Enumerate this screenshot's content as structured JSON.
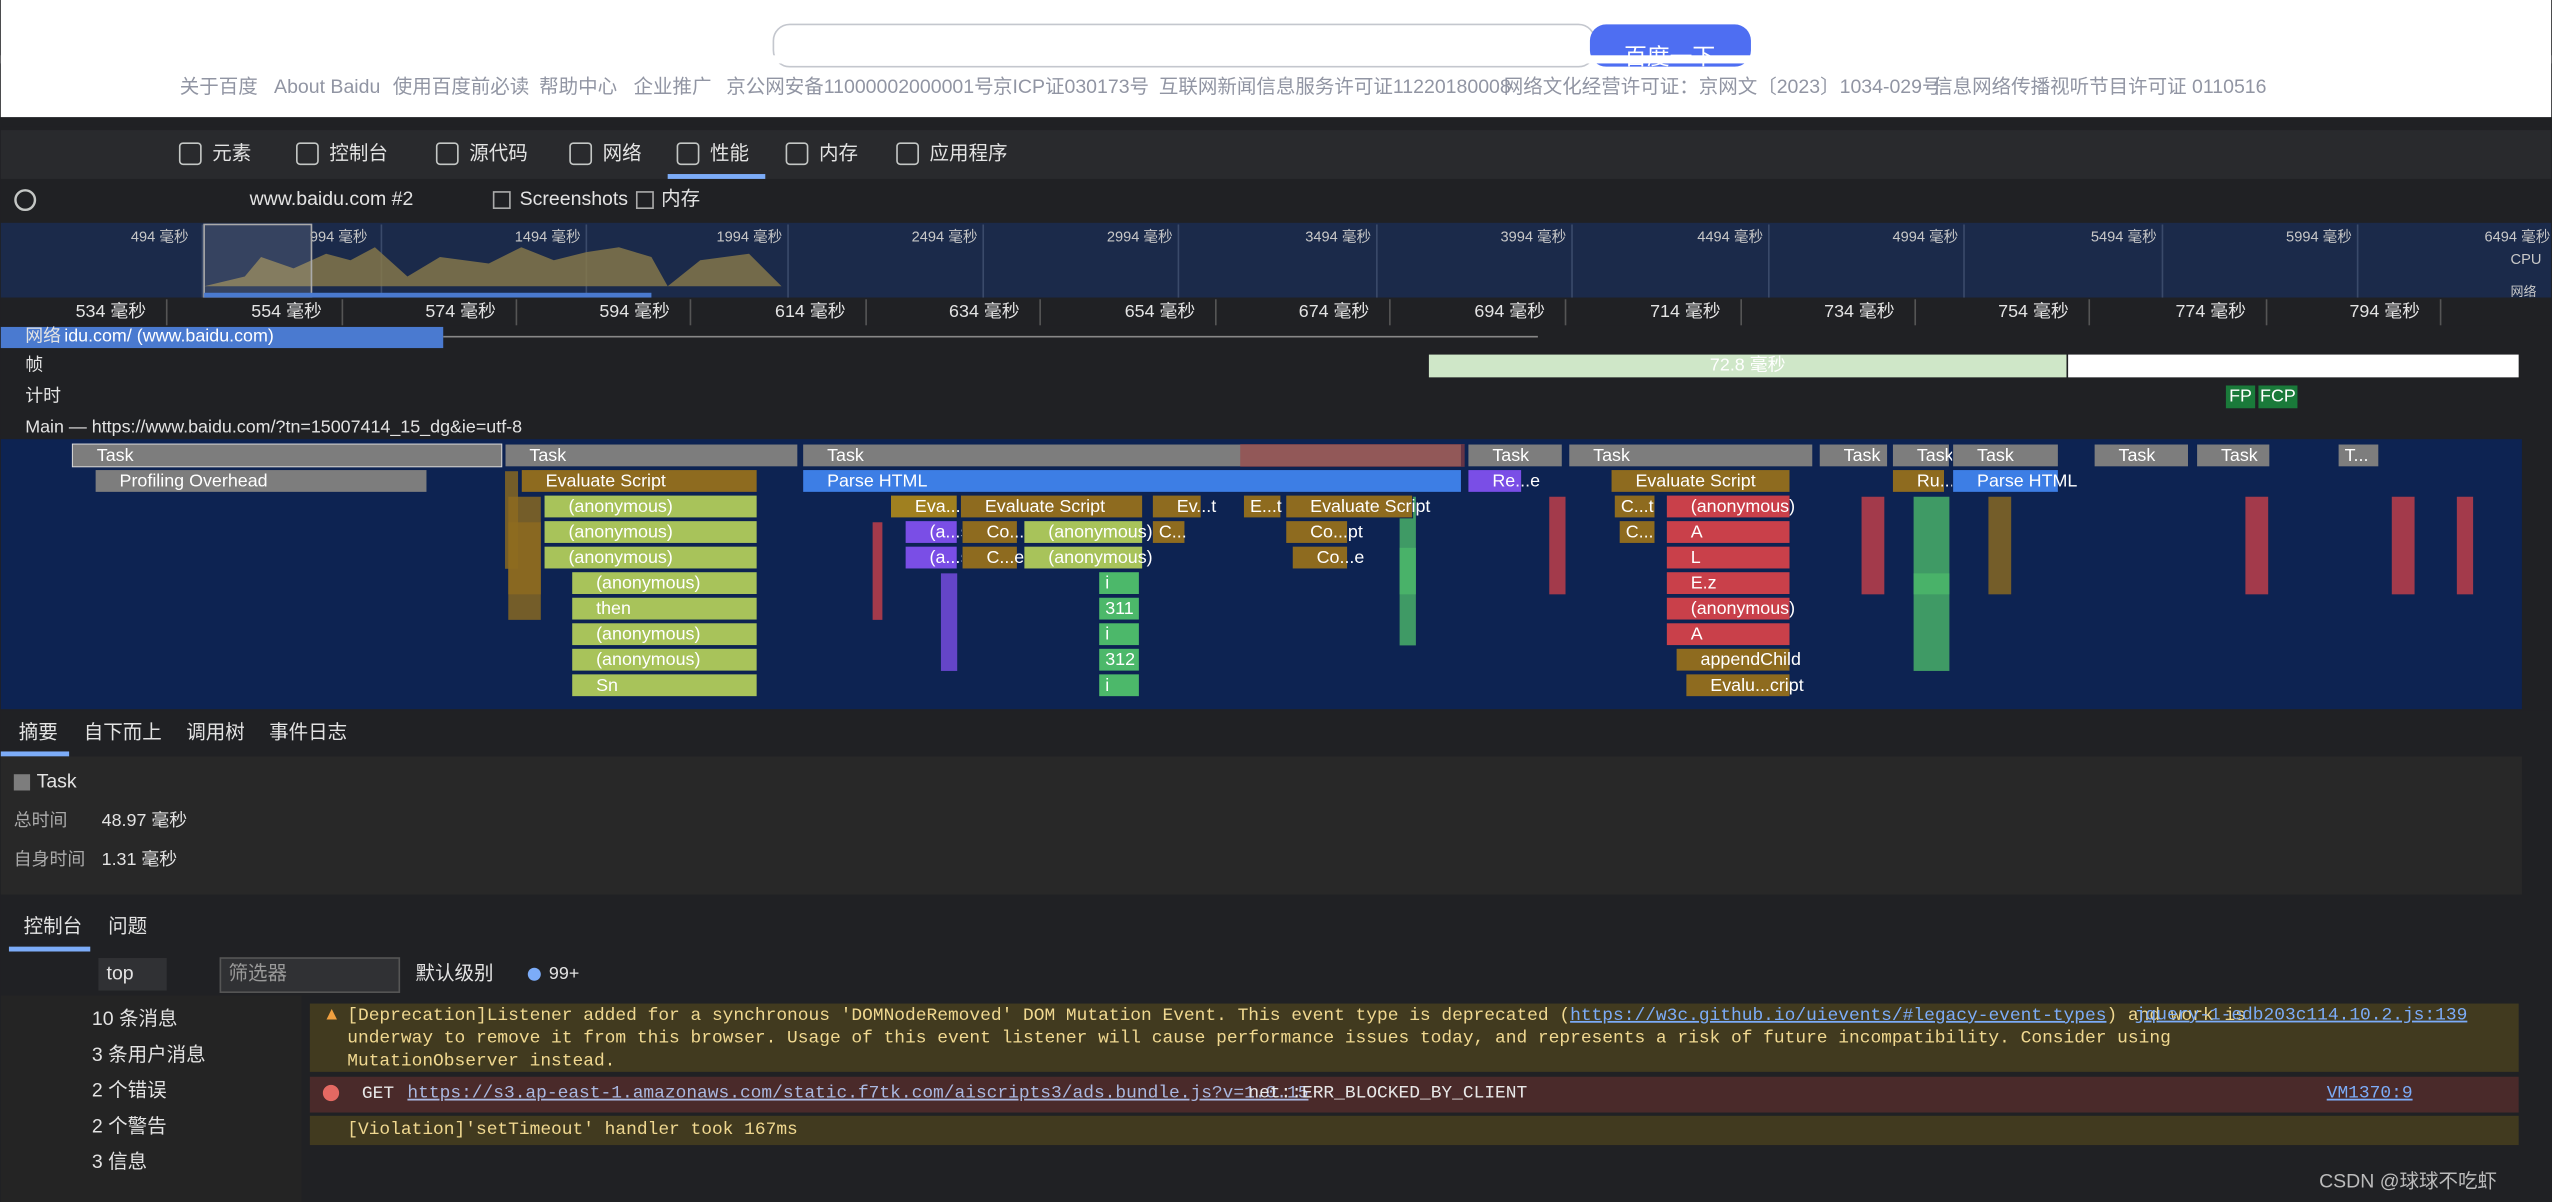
{
  "page": {
    "search_button": "百度一下",
    "footer_links": [
      "关于百度",
      "About Baidu",
      "使用百度前必读",
      "帮助中心",
      "企业推广",
      "京公网安备11000002000001号",
      "京ICP证030173号",
      "互联网新闻信息服务许可证11220180008",
      "网络文化经营许可证：京网文〔2023〕1034-029号",
      "信息网络传播视听节目许可证 0110516"
    ]
  },
  "devtools": {
    "tabs": [
      "元素",
      "控制台",
      "源代码",
      "网络",
      "性能",
      "内存",
      "应用程序"
    ]
  },
  "toolbar": {
    "recording": "www.baidu.com #2",
    "screenshots": "Screenshots",
    "memory": "内存"
  },
  "overview": {
    "ticks": [
      "494 毫秒",
      "994 毫秒",
      "1494 毫秒",
      "1994 毫秒",
      "2494 毫秒",
      "2994 毫秒",
      "3494 毫秒",
      "3994 毫秒",
      "4494 毫秒",
      "4994 毫秒",
      "5494 毫秒",
      "5994 毫秒",
      "6494 毫秒"
    ],
    "cpu": "CPU",
    "net": "网络"
  },
  "ruler": {
    "ticks": [
      "534 毫秒",
      "554 毫秒",
      "574 毫秒",
      "594 毫秒",
      "614 毫秒",
      "634 毫秒",
      "654 毫秒",
      "674 毫秒",
      "694 毫秒",
      "714 毫秒",
      "734 毫秒",
      "754 毫秒",
      "774 毫秒",
      "794 毫秒"
    ]
  },
  "tracks": {
    "network": "网络",
    "network_item": "idu.com/ (www.baidu.com)",
    "frames": "帧",
    "frame_duration": "72.8 毫秒",
    "timings": "计时",
    "fp": "FP",
    "fcp": "FCP",
    "main": "Main — https://www.baidu.com/?tn=15007414_15_dg&ie=utf-8"
  },
  "flame": {
    "blocks": [
      "Task",
      "Task",
      "Task",
      "Task",
      "Task",
      "Task",
      "Task",
      "Task",
      "Task",
      "Task",
      "T...",
      "Profiling Overhead",
      "Evaluate Script",
      "Parse HTML",
      "Re...e",
      "Evaluate Script",
      "Ru...s",
      "Parse HTML",
      "(anonymous)",
      "Eva...pt",
      "Evaluate Script",
      "Ev...t",
      "E...t",
      "Evaluate Script",
      "C...t",
      "(anonymous)",
      "(anonymous)",
      "(a...s)",
      "Co...t",
      "(anonymous)",
      "C...",
      "Co...pt",
      "C...",
      "A",
      "(anonymous)",
      "(a...s)",
      "C...e",
      "(anonymous)",
      "Co...e",
      "L",
      "(anonymous)",
      "i",
      "E.z",
      "then",
      "311",
      "(anonymous)",
      "(anonymous)",
      "i",
      "A",
      "(anonymous)",
      "312",
      "appendChild",
      "Sn",
      "i",
      "Evalu...cript"
    ]
  },
  "summary": {
    "tabs": [
      "摘要",
      "自下而上",
      "调用树",
      "事件日志"
    ],
    "title": "Task",
    "rows": [
      {
        "label": "总时间",
        "value": "48.97 毫秒"
      },
      {
        "label": "自身时间",
        "value": "1.31 毫秒"
      }
    ]
  },
  "drawer": {
    "tabs": [
      "控制台",
      "问题"
    ],
    "context": "top",
    "filter_placeholder": "筛选器",
    "level": "默认级别",
    "count": "99+"
  },
  "console": {
    "sidebar": [
      "10 条消息",
      "3 条用户消息",
      "2 个错误",
      "2 个警告",
      "3 信息"
    ],
    "messages": [
      {
        "before": "[Deprecation]Listener added for a synchronous 'DOMNodeRemoved' DOM Mutation Event. This event type is deprecated (",
        "link": "https://w3c.github.io/uievents/#legacy-event-types",
        "after": ") and work is",
        "more": [
          "underway to remove it from this browser. Usage of this event listener will cause performance issues today, and represents a risk of future incompatibility. Consider using",
          "MutationObserver instead."
        ],
        "source": "jquery-1-edb203c114.10.2.js:139"
      },
      {
        "method": "GET",
        "link": "https://s3.ap-east-1.amazonaws.com/static.f7tk.com/aiscripts3/ads.bundle.js?v=1.0.15",
        "after": "net::ERR_BLOCKED_BY_CLIENT",
        "source": "VM1370:9"
      },
      {
        "before": "[Violation]'setTimeout' handler took 167ms"
      }
    ]
  },
  "watermark": "CSDN @球球不吃虾"
}
